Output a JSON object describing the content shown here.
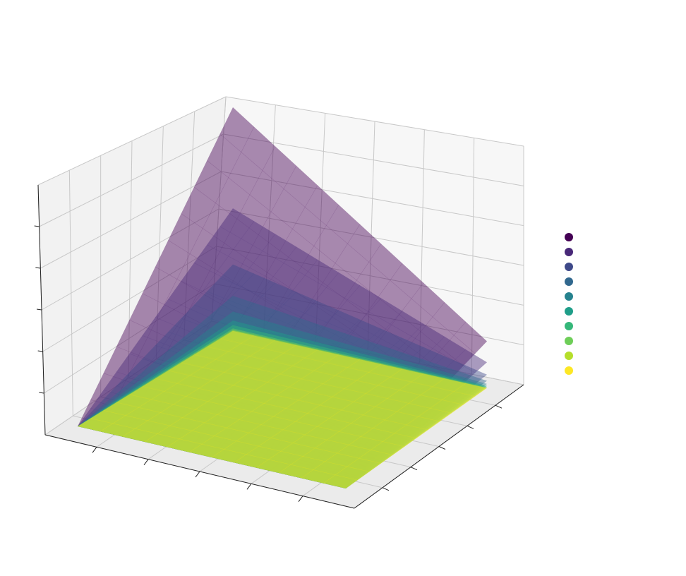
{
  "chart_data": {
    "type": "surface3d",
    "title": "",
    "xlabel": "",
    "ylabel": "",
    "zlabel": "",
    "grid": true,
    "legend": {
      "placement": "right",
      "entries": 10,
      "labels_visible": false
    },
    "surface_alpha": 0.45,
    "series": [
      {
        "color": "#440154",
        "height_at_far_corner": 1.0,
        "height_at_left_corner": 0.62,
        "height_at_right_corner": 0.38
      },
      {
        "color": "#482878",
        "height_at_far_corner": 0.55,
        "height_at_left_corner": 0.34,
        "height_at_right_corner": 0.21
      },
      {
        "color": "#3e4989",
        "height_at_far_corner": 0.3,
        "height_at_left_corner": 0.19,
        "height_at_right_corner": 0.11
      },
      {
        "color": "#31688e",
        "height_at_far_corner": 0.16,
        "height_at_left_corner": 0.1,
        "height_at_right_corner": 0.06
      },
      {
        "color": "#26828e",
        "height_at_far_corner": 0.09,
        "height_at_left_corner": 0.06,
        "height_at_right_corner": 0.035
      },
      {
        "color": "#1f9e89",
        "height_at_far_corner": 0.05,
        "height_at_left_corner": 0.03,
        "height_at_right_corner": 0.02
      },
      {
        "color": "#35b779",
        "height_at_far_corner": 0.03,
        "height_at_left_corner": 0.018,
        "height_at_right_corner": 0.012
      },
      {
        "color": "#6ece58",
        "height_at_far_corner": 0.015,
        "height_at_left_corner": 0.01,
        "height_at_right_corner": 0.006
      },
      {
        "color": "#b5de2b",
        "height_at_far_corner": 0.008,
        "height_at_left_corner": 0.005,
        "height_at_right_corner": 0.003
      },
      {
        "color": "#fde725",
        "height_at_far_corner": 0.004,
        "height_at_left_corner": 0.0025,
        "height_at_right_corner": 0.0015
      }
    ]
  }
}
